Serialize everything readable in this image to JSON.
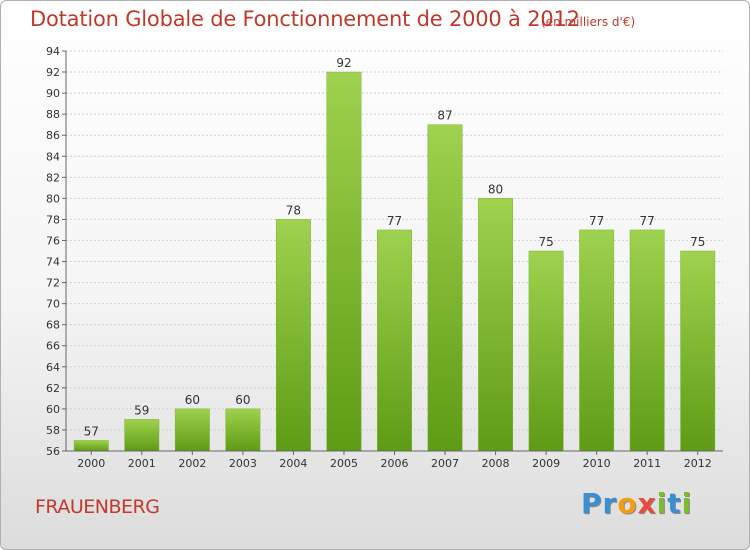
{
  "title": "Dotation Globale de Fonctionnement de 2000 à 2012",
  "subtitle": "(en milliers d'€)",
  "commune": "FRAUENBERG",
  "logo": {
    "text": "Proxiti",
    "letters": [
      {
        "ch": "P",
        "color": "#3a8fd0"
      },
      {
        "ch": "r",
        "color": "#3a8fd0"
      },
      {
        "ch": "o",
        "color": "#f39c12"
      },
      {
        "ch": "x",
        "color": "#e74c3c"
      },
      {
        "ch": "i",
        "color": "#7dbb2e"
      },
      {
        "ch": "t",
        "color": "#3a8fd0"
      },
      {
        "ch": "i",
        "color": "#7dbb2e"
      }
    ]
  },
  "colors": {
    "bar_top": "#9fd24e",
    "bar_bottom": "#5e9b14",
    "title": "#c0392b",
    "grid": "#d0d0d0",
    "axis": "#666666",
    "text": "#333333"
  },
  "chart_data": {
    "type": "bar",
    "title": "Dotation Globale de Fonctionnement de 2000 à 2012",
    "xlabel": "",
    "ylabel": "",
    "categories": [
      "2000",
      "2001",
      "2002",
      "2003",
      "2004",
      "2005",
      "2006",
      "2007",
      "2008",
      "2009",
      "2010",
      "2011",
      "2012"
    ],
    "values": [
      57,
      59,
      60,
      60,
      78,
      92,
      77,
      87,
      80,
      75,
      77,
      77,
      75
    ],
    "ylim": [
      56,
      94
    ],
    "ytick_step": 2,
    "grid": true
  }
}
